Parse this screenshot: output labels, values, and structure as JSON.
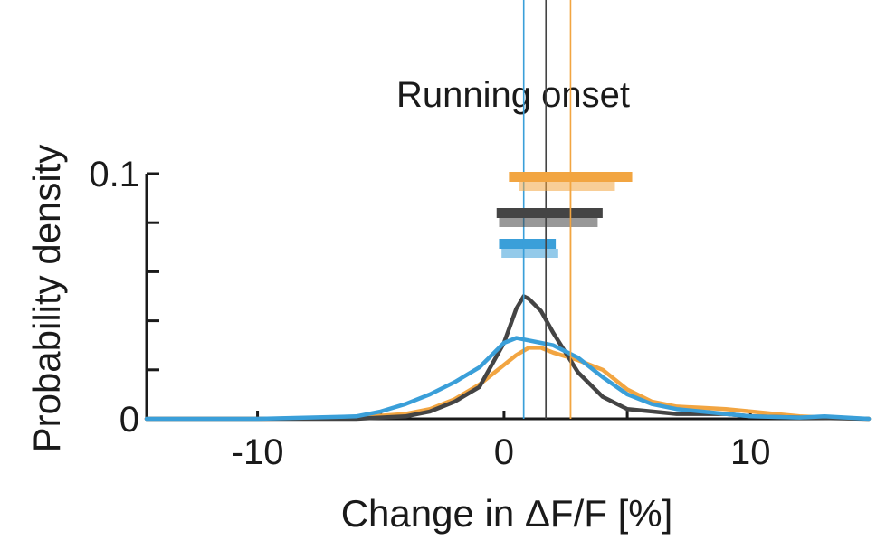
{
  "chart_data": {
    "type": "line",
    "title": "Running onset",
    "xlabel": "Change in ΔF/F [%]",
    "ylabel": "Probability density",
    "xlim": [
      -14.5,
      14.8
    ],
    "ylim": [
      0,
      0.1
    ],
    "x_ticks": [
      -10,
      -5,
      0,
      5,
      10
    ],
    "x_tick_labels": [
      "-10",
      "",
      "0",
      "",
      "10"
    ],
    "y_ticks": [
      0,
      0.02,
      0.04,
      0.06,
      0.08,
      0.1
    ],
    "y_tick_labels": [
      "0",
      "",
      "",
      "",
      "",
      "0.1"
    ],
    "grid": false,
    "legend": "none",
    "series": [
      {
        "color": "#f2a541",
        "x": [
          -14.5,
          -10,
          -6,
          -4,
          -3,
          -2,
          -1,
          0,
          0.5,
          1,
          1.5,
          2,
          3,
          4,
          5,
          6,
          7,
          8,
          9,
          10,
          11,
          12,
          13,
          14.8
        ],
        "y": [
          0,
          0,
          0.0005,
          0.002,
          0.004,
          0.008,
          0.014,
          0.022,
          0.026,
          0.029,
          0.029,
          0.027,
          0.024,
          0.02,
          0.012,
          0.007,
          0.005,
          0.0045,
          0.004,
          0.003,
          0.002,
          0.001,
          0.0005,
          0
        ],
        "median": 2.7,
        "ci_outer": [
          0.2,
          5.2
        ],
        "ci_inner": [
          0.6,
          4.5
        ]
      },
      {
        "color": "#444444",
        "x": [
          -14.5,
          -10,
          -6,
          -4,
          -3,
          -2,
          -1,
          0,
          0.5,
          0.8,
          1,
          1.5,
          2,
          2.5,
          3,
          4,
          5,
          6,
          7,
          8,
          9,
          10,
          12,
          14.8
        ],
        "y": [
          0,
          0,
          0,
          0.001,
          0.003,
          0.007,
          0.013,
          0.031,
          0.045,
          0.05,
          0.049,
          0.044,
          0.035,
          0.027,
          0.019,
          0.009,
          0.004,
          0.003,
          0.002,
          0.002,
          0.002,
          0.001,
          0.0005,
          0
        ],
        "median": 1.7,
        "ci_outer": [
          -0.3,
          4.0
        ],
        "ci_inner": [
          -0.2,
          3.8
        ]
      },
      {
        "color": "#3a9fd9",
        "x": [
          -14.5,
          -10,
          -6,
          -5,
          -4,
          -3,
          -2,
          -1,
          0,
          0.5,
          1,
          1.5,
          2,
          3,
          4,
          5,
          6,
          7,
          8,
          9,
          10,
          12,
          13,
          14.8
        ],
        "y": [
          0,
          0,
          0.001,
          0.003,
          0.006,
          0.01,
          0.015,
          0.021,
          0.031,
          0.033,
          0.032,
          0.031,
          0.03,
          0.025,
          0.017,
          0.01,
          0.006,
          0.004,
          0.003,
          0.002,
          0.001,
          0.0005,
          0.001,
          0
        ],
        "median": 0.8,
        "ci_outer": [
          -0.2,
          2.1
        ],
        "ci_inner": [
          -0.1,
          2.2
        ]
      }
    ]
  }
}
